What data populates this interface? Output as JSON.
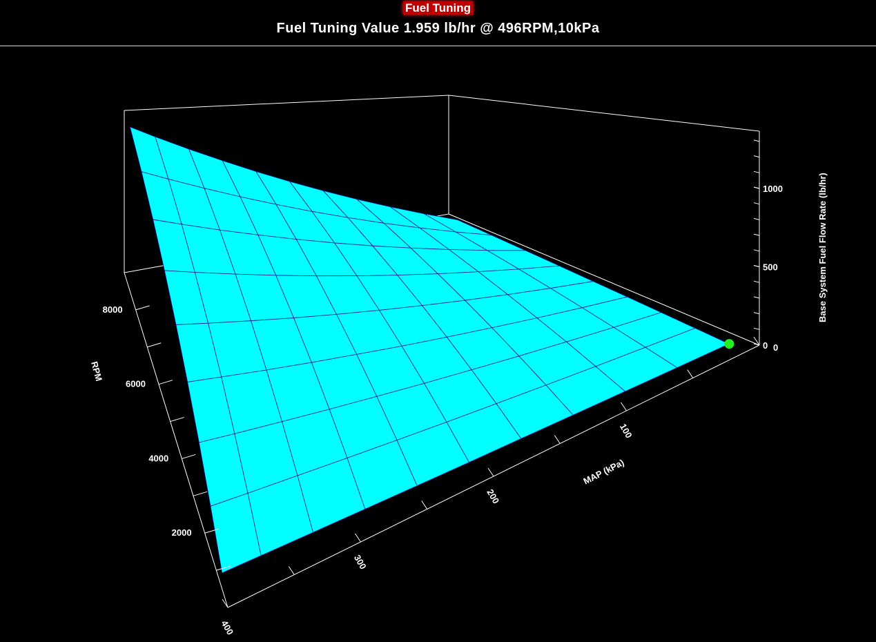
{
  "header": {
    "title": "Fuel Tuning",
    "subtitle": "Fuel Tuning Value 1.959 lb/hr @ 496RPM,10kPa"
  },
  "chart_data": {
    "type": "surface",
    "title": "Fuel Tuning Value 1.959 lb/hr @ 496RPM,10kPa",
    "xlabel": "MAP (kPa)",
    "ylabel": "RPM",
    "zlabel": "Base System Fuel Flow Rate (lb/hr)",
    "x_ticks": [
      "0",
      "100",
      "200",
      "300",
      "400"
    ],
    "y_ticks": [
      "2000",
      "4000",
      "6000",
      "8000"
    ],
    "z_ticks": [
      "0",
      "500",
      "1000"
    ],
    "xlim": [
      0,
      400
    ],
    "ylim": [
      0,
      9000
    ],
    "zlim": [
      0,
      1400
    ],
    "map": [
      10,
      50,
      90,
      130,
      170,
      210,
      250,
      290,
      330,
      370,
      400
    ],
    "rpm": [
      500,
      1500,
      2500,
      3500,
      4500,
      5500,
      6500,
      7500,
      8500
    ],
    "values": [
      [
        2,
        10,
        18,
        26,
        34,
        41,
        49,
        57,
        65,
        73,
        79
      ],
      [
        6,
        30,
        53,
        77,
        101,
        124,
        148,
        172,
        196,
        219,
        237
      ],
      [
        10,
        49,
        89,
        128,
        168,
        207,
        247,
        286,
        326,
        365,
        395
      ],
      [
        14,
        69,
        124,
        180,
        235,
        290,
        346,
        401,
        456,
        512,
        553
      ],
      [
        18,
        89,
        160,
        231,
        302,
        373,
        444,
        515,
        587,
        658,
        711
      ],
      [
        22,
        109,
        196,
        282,
        369,
        456,
        543,
        630,
        717,
        804,
        869
      ],
      [
        26,
        128,
        231,
        334,
        436,
        539,
        642,
        745,
        847,
        950,
        1027
      ],
      [
        30,
        148,
        267,
        385,
        504,
        622,
        741,
        859,
        978,
        1096,
        1185
      ],
      [
        34,
        168,
        302,
        436,
        571,
        705,
        839,
        974,
        1108,
        1242,
        1343
      ]
    ],
    "cursor": {
      "rpm": 496,
      "map": 10,
      "value": 1.959
    },
    "surface_color": "#00ffff",
    "mesh_color": "#1a1a9a",
    "cursor_color": "#22ee22",
    "grid": false
  }
}
